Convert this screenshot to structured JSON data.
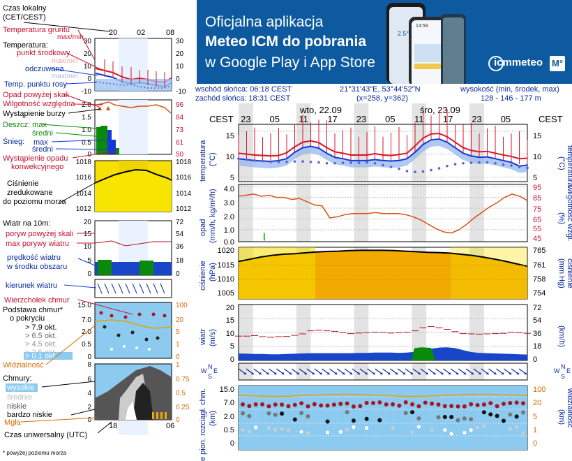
{
  "banner": {
    "line1": "Oficjalna aplikacja",
    "line2": "Meteo ICM do pobrania",
    "line3": "w Google Play i App Store",
    "logo": "icmmeteo",
    "badge": "M°",
    "phone_values": [
      "2.5°",
      "14:59"
    ]
  },
  "info": {
    "sunrise": "wschód słońca: 06:18 CEST",
    "sunset": "zachód słońca: 18:31 CEST",
    "coords": "21°31'43\"E, 53°44'52\"N",
    "grid": "(x=258,  y=362)",
    "alt_title": "wysokość (min, środek, max)",
    "alt_values": "128 - 146 - 177 m"
  },
  "legend": {
    "local_time": "Czas lokalny",
    "local_time2": "(CET/CEST)",
    "hours_top": [
      "20",
      "02",
      "08"
    ],
    "ground_temp": "Temperatura gruntu",
    "ground_temp2": "max/min",
    "temperature": "Temperatura:",
    "midpoint": "punkt środkowy",
    "max_min": "max/min",
    "feels": "odczuwana",
    "feels_max_min": "max/min",
    "dew": "Temp. punktu rosy",
    "precip_above": "Opad powyżej skali",
    "humidity": "Wilgotność względna",
    "storm": "Wystąpienie burzy",
    "rain": "Deszcz: max",
    "rain_mid": "średni",
    "snow": "Śnieg:",
    "snow_max": "max",
    "snow_mid": "średni",
    "conv": "Wystąpienie opadu",
    "conv2": "konwekcyjnego",
    "pressure": "Ciśnienie",
    "pressure2": "zredukowane",
    "pressure3": "do poziomu morza",
    "wind_at": "Wiatr na 10m:",
    "gust_above": "poryw powyżej skali",
    "gust_max": "max porywy wiatru",
    "wind_speed": "prędkość wiatru",
    "wind_speed2": "w środku obszaru",
    "wind_dir": "kierunek wiatru",
    "cloud_top": "Wierzchołek chmur",
    "cloud_base": "Podstawa chmur*",
    "cloud_base2": "o pokryciu",
    "okt": [
      "> 7.9 okt.",
      "> 6.5 okt.",
      "> 4.5 okt.",
      "> 2.5 okt.",
      "> 0.1 okt."
    ],
    "visibility": "Widzialność",
    "clouds": "Chmury:",
    "high": "wysokie",
    "mid": "średnie",
    "low": "niskie",
    "very_low": "bardzo niskie",
    "fog": "Mgła",
    "utc": "Czas uniwersalny (UTC)",
    "hours_bottom": [
      "18",
      "00",
      "06"
    ],
    "footnote": "* powyżej poziomu morza"
  },
  "legend_axes": {
    "temp_left": [
      "30",
      "20",
      "10",
      "0",
      "-10"
    ],
    "temp_right": [
      "30",
      "20",
      "10",
      "0",
      "-10"
    ],
    "prec_left": [
      "2.0",
      "1.5",
      "1.0",
      "0.5",
      "0"
    ],
    "prec_right": [
      "96",
      "84",
      "73",
      "61",
      "50"
    ],
    "pres": [
      "1018",
      "1016",
      "1014",
      "1012"
    ],
    "wind_left": [
      "20",
      "15",
      "10",
      "5",
      "0"
    ],
    "wind_right": [
      "72",
      "54",
      "36",
      "18",
      "0"
    ],
    "cbase_left": [
      "15.0",
      "7.0",
      "2.0",
      "0.5",
      "0"
    ],
    "cbase_right": [
      "100",
      "20",
      "5",
      "1",
      "0"
    ],
    "cloud_left": [
      "8",
      "6",
      "4",
      "2",
      "0"
    ],
    "cloud_right": [
      "1",
      "0.75",
      "0.5",
      "0.25",
      "0"
    ]
  },
  "main": {
    "tz": "CEST",
    "day1": "wto, 22.09",
    "day2": "śro, 23.09",
    "hours": [
      "23",
      "05",
      "11",
      "17",
      "23",
      "05",
      "11",
      "17",
      "23",
      "05"
    ],
    "temp_label": "temperatura",
    "temp_unit": "(°C)",
    "temp_ticks": [
      "15",
      "10",
      "5"
    ],
    "prec_label": "opad",
    "prec_unit": "(mm/h, kg/m²/h)",
    "prec_ticks": [
      "4.0",
      "3.0",
      "2.0",
      "1.0",
      "0.0"
    ],
    "hum_label": "wilgotność wzgl.",
    "hum_unit": "(%)",
    "hum_ticks": [
      "95",
      "85",
      "75",
      "65",
      "55",
      "45"
    ],
    "pres_label": "ciśnienie",
    "pres_unit": "(hPa)",
    "pres_ticks": [
      "1020",
      "1015",
      "1010",
      "1005"
    ],
    "pres_label_r": "ciśnienie",
    "pres_unit_r": "(mm Hg)",
    "pres_ticks_r": [
      "765",
      "761",
      "758",
      "754"
    ],
    "wind_label": "wiatr",
    "wind_unit": "(m/s)",
    "wind_ticks": [
      "20",
      "15",
      "10",
      "5",
      "0"
    ],
    "wind_unit_r": "(km/h)",
    "wind_ticks_r": [
      "72",
      "54",
      "36",
      "18",
      "0"
    ],
    "compass": [
      "W",
      "N",
      "S",
      "E"
    ],
    "cbase_label": "e  pion. rozciągł. chm.",
    "cbase_unit": "(km)",
    "cbase_ticks": [
      "15.0",
      "7.0",
      "2.0",
      "0.5",
      "0"
    ],
    "vis_label": "widzialność",
    "vis_unit": "(km)",
    "vis_ticks": [
      "100",
      "20",
      "5",
      "1",
      "0"
    ]
  },
  "series": {
    "temp_mid": [
      10.2,
      10.0,
      9.8,
      9.7,
      9.6,
      9.7,
      10.3,
      11.6,
      12.6,
      12.9,
      12.5,
      11.4,
      10.5,
      10.2,
      9.8,
      9.8,
      9.8,
      10.1,
      9.8,
      9.7,
      9.9,
      10.2,
      11.8,
      13.5,
      14.4,
      14.5,
      13.8,
      12.6,
      11.4,
      10.8,
      10.5,
      10.6,
      10.2,
      9.8,
      9.5,
      9.0,
      9.1
    ],
    "temp_feel": [
      9.0,
      8.8,
      8.6,
      8.5,
      8.4,
      8.6,
      9.0,
      10.4,
      11.4,
      11.7,
      11.3,
      10.2,
      9.3,
      9.0,
      8.6,
      8.6,
      8.6,
      8.8,
      8.6,
      8.5,
      8.6,
      9.0,
      10.4,
      12.1,
      13.1,
      13.3,
      12.6,
      11.4,
      10.2,
      9.6,
      9.3,
      9.4,
      9.0,
      8.6,
      8.2,
      7.4,
      7.6
    ],
    "dew": [
      9.0,
      8.8,
      8.6,
      8.5,
      8.3,
      8.3,
      8.3,
      8.4,
      8.4,
      8.3,
      8.2,
      8.0,
      8.0,
      8.1,
      8.1,
      8.1,
      8.2,
      8.0,
      7.6,
      7.2,
      6.8,
      6.3,
      6.1,
      6.2,
      6.5,
      6.9,
      7.4,
      7.8,
      8.0,
      8.1,
      8.2,
      8.2,
      8.0,
      7.7,
      7.5,
      7.2,
      7.0
    ],
    "humidity": [
      86,
      87,
      88,
      86,
      87,
      85,
      85,
      83,
      84,
      81,
      78,
      77,
      66,
      67,
      69,
      70,
      70,
      70,
      71,
      70,
      70,
      70,
      69,
      67,
      64,
      60,
      56,
      53,
      52,
      55,
      60,
      66,
      71,
      76,
      80,
      85,
      88,
      86,
      82
    ],
    "pressure": [
      1016.4,
      1017.2,
      1018.0,
      1018.6,
      1019.0,
      1019.2,
      1019.5,
      1019.8,
      1020.0,
      1020.1,
      1020.3,
      1020.4,
      1020.4,
      1020.4,
      1020.3,
      1020.1,
      1019.9,
      1019.7,
      1019.6,
      1019.4,
      1019.0,
      1018.6,
      1018.0,
      1017.3,
      1016.5,
      1015.6,
      1014.7
    ],
    "wind": [
      2.5,
      2.4,
      2.3,
      2.3,
      2.2,
      2.2,
      2.3,
      2.4,
      2.5,
      2.6,
      2.6,
      2.6,
      2.6,
      2.6,
      2.6,
      2.7,
      2.7,
      2.8,
      2.8,
      2.8,
      2.7,
      2.8,
      3.1,
      3.6,
      4.2,
      4.6,
      4.7,
      4.4,
      3.7,
      3.0,
      2.7,
      2.6,
      2.5,
      2.4,
      2.3,
      2.2,
      2.1
    ],
    "gust": [
      8.7,
      8.7,
      8.9,
      8.5,
      8.3,
      8.5,
      8.6,
      9.0,
      9.5,
      10.6,
      10.8,
      10.6,
      10.4,
      9.9,
      9.6,
      9.8,
      10.0,
      10.1,
      10.0,
      9.8,
      9.9,
      10.1,
      10.6,
      11.7,
      12.1,
      11.7,
      11.1,
      10.3,
      9.6,
      9.5,
      9.4,
      9.5,
      9.6,
      9.7,
      10.1,
      9.9,
      9.7
    ]
  },
  "colors": {
    "temp": "#d7162a",
    "feel": "#1538d9",
    "dew": "#5a64c8",
    "humidity": "#d75012",
    "pressure_fill": "#f2a900",
    "pressure_line": "#000000",
    "wind_fill": "#1747c8",
    "gust": "#b0121e",
    "sky": "#8ccaf0",
    "visibility": "#e8a000",
    "banner": "#0e5aa0"
  }
}
